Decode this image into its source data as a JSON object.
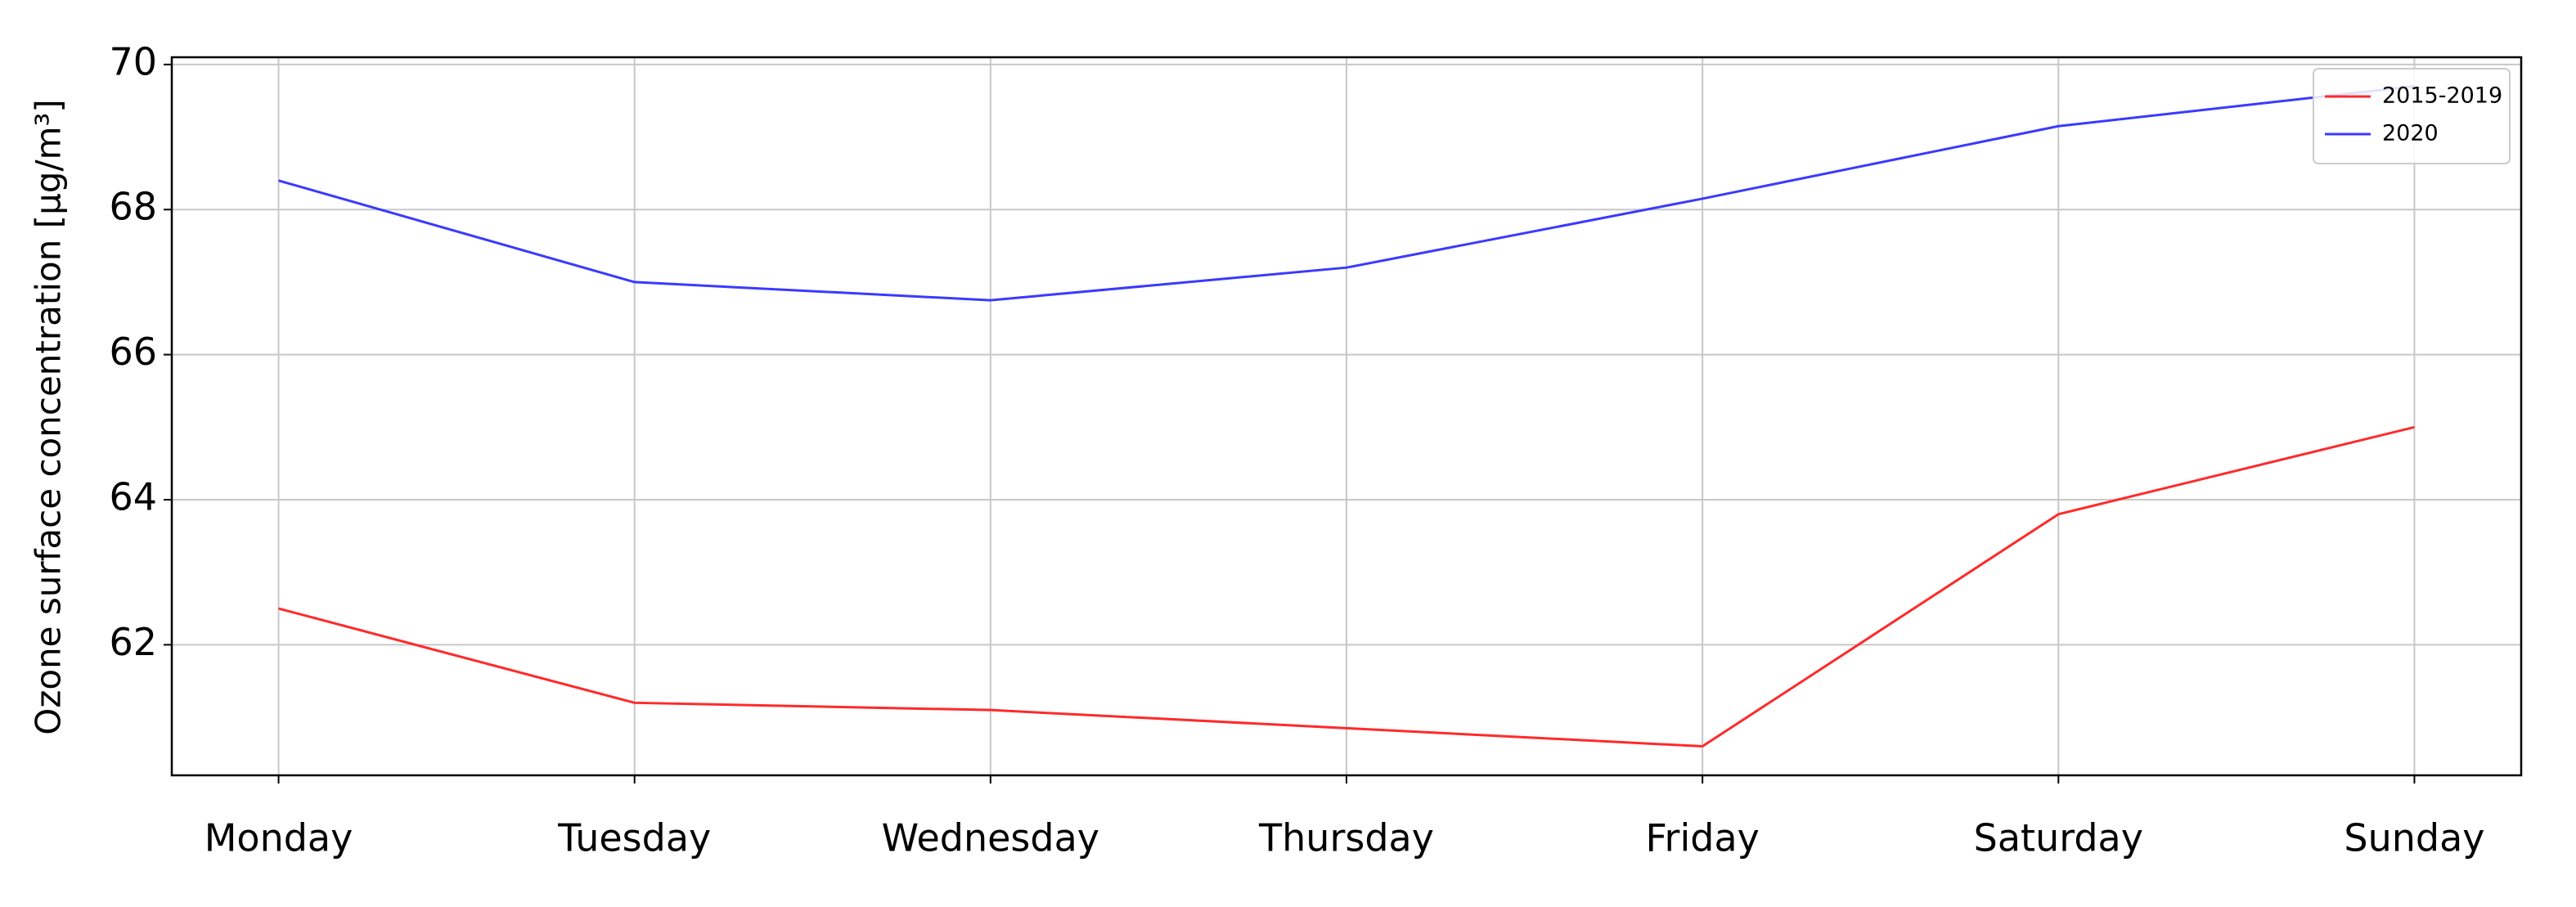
{
  "chart_data": {
    "type": "line",
    "y_label": "Ozone surface concentration [μg/m³]",
    "categories": [
      "Monday",
      "Tuesday",
      "Wednesday",
      "Thursday",
      "Friday",
      "Saturday",
      "Sunday"
    ],
    "series": [
      {
        "name": "2015-2019",
        "color": "#ff2a2a",
        "values": [
          62.5,
          61.2,
          61.1,
          60.85,
          60.6,
          63.8,
          65.0
        ]
      },
      {
        "name": "2020",
        "color": "#3a3aff",
        "values": [
          68.4,
          67.0,
          66.75,
          67.2,
          68.15,
          69.15,
          69.7
        ]
      }
    ],
    "ylim": [
      60.2,
      70.1
    ],
    "yticks": [
      62,
      64,
      66,
      68,
      70
    ],
    "grid": true,
    "legend": "upper right"
  }
}
